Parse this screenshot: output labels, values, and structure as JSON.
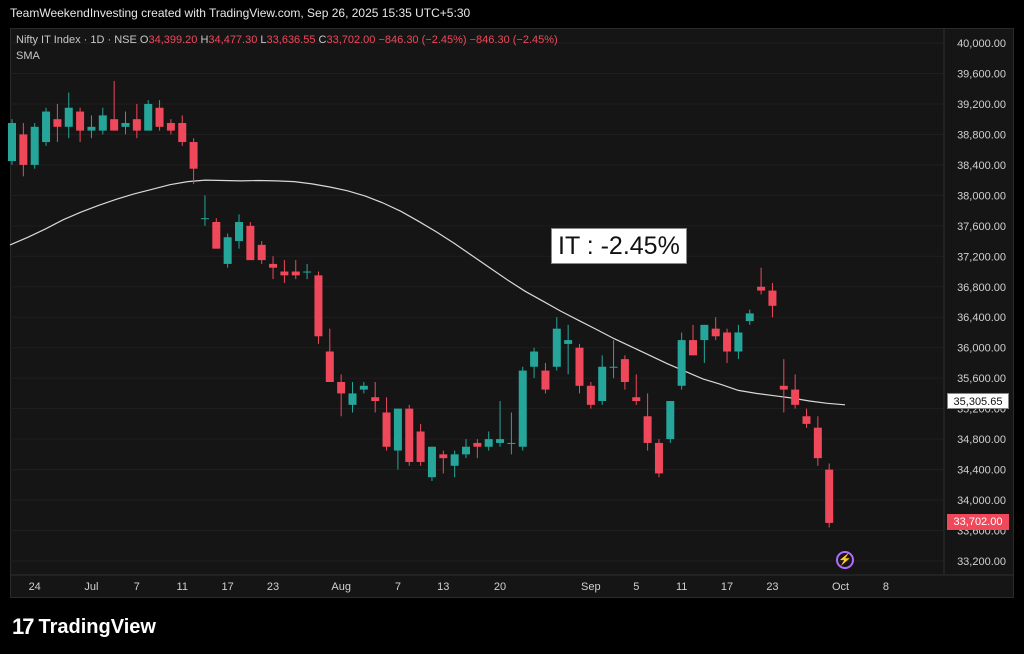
{
  "header": {
    "credit": "TeamWeekendInvesting created with TradingView.com, Sep 26, 2025 15:35 UTC+5:30"
  },
  "legend": {
    "instrument": "Nifty IT Index · 1D · NSE",
    "open_label": "O",
    "open": "34,399.20",
    "high_label": "H",
    "high": "34,477.30",
    "low_label": "L",
    "low": "33,636.55",
    "close_label": "C",
    "close": "33,702.00",
    "change": "−846.30 (−2.45%)",
    "change_repeat": "−846.30 (−2.45%)",
    "indicator": "SMA"
  },
  "annotation_text": "IT : -2.45%",
  "sma_price_label": "35,305.65",
  "last_price_label": "33,702.00",
  "brand": {
    "name": "TradingView",
    "mark": "17"
  },
  "colors": {
    "up": "#26a69a",
    "down": "#f0485b",
    "sma": "#d8d8d8",
    "axis_text": "#d0d0d0",
    "accent_bolt": "#b36bff"
  },
  "chart_data": {
    "type": "candlestick",
    "title": "Nifty IT Index · 1D · NSE",
    "y_range": [
      33000,
      40200
    ],
    "y_ticks": [
      "40,000.00",
      "39,600.00",
      "39,200.00",
      "38,800.00",
      "38,400.00",
      "38,000.00",
      "37,600.00",
      "37,200.00",
      "36,800.00",
      "36,400.00",
      "36,000.00",
      "35,600.00",
      "35,200.00",
      "34,800.00",
      "34,400.00",
      "34,000.00",
      "33,600.00",
      "33,200.00"
    ],
    "x_ticks": [
      {
        "label": "24",
        "i": 2
      },
      {
        "label": "Jul",
        "i": 7
      },
      {
        "label": "7",
        "i": 11
      },
      {
        "label": "11",
        "i": 15
      },
      {
        "label": "17",
        "i": 19
      },
      {
        "label": "23",
        "i": 23
      },
      {
        "label": "Aug",
        "i": 29
      },
      {
        "label": "7",
        "i": 34
      },
      {
        "label": "13",
        "i": 38
      },
      {
        "label": "20",
        "i": 43
      },
      {
        "label": "Sep",
        "i": 51
      },
      {
        "label": "5",
        "i": 55
      },
      {
        "label": "11",
        "i": 59
      },
      {
        "label": "17",
        "i": 63
      },
      {
        "label": "23",
        "i": 67
      },
      {
        "label": "Oct",
        "i": 73
      },
      {
        "label": "8",
        "i": 77
      }
    ],
    "candles": [
      {
        "o": 38450,
        "h": 39000,
        "l": 38400,
        "c": 38950
      },
      {
        "o": 38800,
        "h": 38950,
        "l": 38250,
        "c": 38400
      },
      {
        "o": 38400,
        "h": 38950,
        "l": 38350,
        "c": 38900
      },
      {
        "o": 38700,
        "h": 39150,
        "l": 38650,
        "c": 39100
      },
      {
        "o": 39000,
        "h": 39200,
        "l": 38700,
        "c": 38900
      },
      {
        "o": 38900,
        "h": 39350,
        "l": 38750,
        "c": 39150
      },
      {
        "o": 39100,
        "h": 39150,
        "l": 38700,
        "c": 38850
      },
      {
        "o": 38850,
        "h": 39050,
        "l": 38750,
        "c": 38900
      },
      {
        "o": 38850,
        "h": 39150,
        "l": 38800,
        "c": 39050
      },
      {
        "o": 39000,
        "h": 39500,
        "l": 38900,
        "c": 38850
      },
      {
        "o": 38900,
        "h": 39100,
        "l": 38800,
        "c": 38950
      },
      {
        "o": 39000,
        "h": 39200,
        "l": 38750,
        "c": 38850
      },
      {
        "o": 38850,
        "h": 39250,
        "l": 38850,
        "c": 39200
      },
      {
        "o": 39150,
        "h": 39250,
        "l": 38850,
        "c": 38900
      },
      {
        "o": 38950,
        "h": 39000,
        "l": 38800,
        "c": 38850
      },
      {
        "o": 38950,
        "h": 39050,
        "l": 38650,
        "c": 38700
      },
      {
        "o": 38700,
        "h": 38750,
        "l": 38150,
        "c": 38350
      },
      {
        "o": 37700,
        "h": 38000,
        "l": 37600,
        "c": 37700
      },
      {
        "o": 37650,
        "h": 37700,
        "l": 37350,
        "c": 37300
      },
      {
        "o": 37100,
        "h": 37500,
        "l": 37050,
        "c": 37450
      },
      {
        "o": 37400,
        "h": 37750,
        "l": 37300,
        "c": 37650
      },
      {
        "o": 37600,
        "h": 37650,
        "l": 37200,
        "c": 37150
      },
      {
        "o": 37350,
        "h": 37400,
        "l": 37100,
        "c": 37150
      },
      {
        "o": 37100,
        "h": 37200,
        "l": 36900,
        "c": 37050
      },
      {
        "o": 37000,
        "h": 37150,
        "l": 36850,
        "c": 36950
      },
      {
        "o": 37000,
        "h": 37150,
        "l": 36900,
        "c": 36950
      },
      {
        "o": 37000,
        "h": 37100,
        "l": 36900,
        "c": 37000
      },
      {
        "o": 36950,
        "h": 37000,
        "l": 36050,
        "c": 36150
      },
      {
        "o": 35950,
        "h": 36250,
        "l": 35550,
        "c": 35550
      },
      {
        "o": 35550,
        "h": 35650,
        "l": 35100,
        "c": 35400
      },
      {
        "o": 35250,
        "h": 35550,
        "l": 35150,
        "c": 35400
      },
      {
        "o": 35450,
        "h": 35550,
        "l": 35400,
        "c": 35500
      },
      {
        "o": 35350,
        "h": 35550,
        "l": 35150,
        "c": 35300
      },
      {
        "o": 35150,
        "h": 35350,
        "l": 34650,
        "c": 34700
      },
      {
        "o": 34650,
        "h": 35200,
        "l": 34400,
        "c": 35200
      },
      {
        "o": 35200,
        "h": 35250,
        "l": 34450,
        "c": 34500
      },
      {
        "o": 34900,
        "h": 35000,
        "l": 34450,
        "c": 34500
      },
      {
        "o": 34300,
        "h": 34700,
        "l": 34250,
        "c": 34700
      },
      {
        "o": 34600,
        "h": 34650,
        "l": 34350,
        "c": 34550
      },
      {
        "o": 34450,
        "h": 34650,
        "l": 34300,
        "c": 34600
      },
      {
        "o": 34600,
        "h": 34800,
        "l": 34550,
        "c": 34700
      },
      {
        "o": 34750,
        "h": 34800,
        "l": 34550,
        "c": 34700
      },
      {
        "o": 34700,
        "h": 34900,
        "l": 34650,
        "c": 34800
      },
      {
        "o": 34750,
        "h": 35300,
        "l": 34700,
        "c": 34800
      },
      {
        "o": 34750,
        "h": 35150,
        "l": 34600,
        "c": 34750
      },
      {
        "o": 34700,
        "h": 35750,
        "l": 34650,
        "c": 35700
      },
      {
        "o": 35750,
        "h": 36000,
        "l": 35600,
        "c": 35950
      },
      {
        "o": 35700,
        "h": 35800,
        "l": 35400,
        "c": 35450
      },
      {
        "o": 35750,
        "h": 36400,
        "l": 35700,
        "c": 36250
      },
      {
        "o": 36050,
        "h": 36300,
        "l": 35650,
        "c": 36100
      },
      {
        "o": 36000,
        "h": 36050,
        "l": 35400,
        "c": 35500
      },
      {
        "o": 35500,
        "h": 35550,
        "l": 35200,
        "c": 35250
      },
      {
        "o": 35300,
        "h": 35900,
        "l": 35250,
        "c": 35750
      },
      {
        "o": 35750,
        "h": 36100,
        "l": 35600,
        "c": 35750
      },
      {
        "o": 35850,
        "h": 35900,
        "l": 35450,
        "c": 35550
      },
      {
        "o": 35350,
        "h": 35650,
        "l": 35250,
        "c": 35300
      },
      {
        "o": 35100,
        "h": 35400,
        "l": 34650,
        "c": 34750
      },
      {
        "o": 34750,
        "h": 34800,
        "l": 34300,
        "c": 34350
      },
      {
        "o": 34800,
        "h": 35300,
        "l": 34750,
        "c": 35300
      },
      {
        "o": 35500,
        "h": 36200,
        "l": 35450,
        "c": 36100
      },
      {
        "o": 36100,
        "h": 36300,
        "l": 35900,
        "c": 35900
      },
      {
        "o": 36100,
        "h": 36300,
        "l": 35800,
        "c": 36300
      },
      {
        "o": 36250,
        "h": 36400,
        "l": 36100,
        "c": 36150
      },
      {
        "o": 36200,
        "h": 36250,
        "l": 35800,
        "c": 35950
      },
      {
        "o": 35950,
        "h": 36300,
        "l": 35850,
        "c": 36200
      },
      {
        "o": 36350,
        "h": 36500,
        "l": 36300,
        "c": 36450
      },
      {
        "o": 36800,
        "h": 37050,
        "l": 36700,
        "c": 36750
      },
      {
        "o": 36750,
        "h": 36850,
        "l": 36400,
        "c": 36550
      },
      {
        "o": 35500,
        "h": 35850,
        "l": 35150,
        "c": 35450
      },
      {
        "o": 35450,
        "h": 35650,
        "l": 35200,
        "c": 35250
      },
      {
        "o": 35100,
        "h": 35200,
        "l": 34950,
        "c": 35000
      },
      {
        "o": 34950,
        "h": 35100,
        "l": 34450,
        "c": 34550
      },
      {
        "o": 34400,
        "h": 34480,
        "l": 33640,
        "c": 33700
      }
    ],
    "sma": [
      37350,
      37450,
      37560,
      37680,
      37780,
      37870,
      37950,
      38020,
      38080,
      38140,
      38180,
      38200,
      38195,
      38190,
      38195,
      38190,
      38180,
      38150,
      38110,
      38060,
      37990,
      37900,
      37790,
      37660,
      37520,
      37370,
      37210,
      37050,
      36890,
      36740,
      36610,
      36480,
      36360,
      36240,
      36120,
      36010,
      35900,
      35790,
      35690,
      35590,
      35520,
      35440,
      35400,
      35370,
      35340,
      35300,
      35270,
      35250
    ]
  }
}
